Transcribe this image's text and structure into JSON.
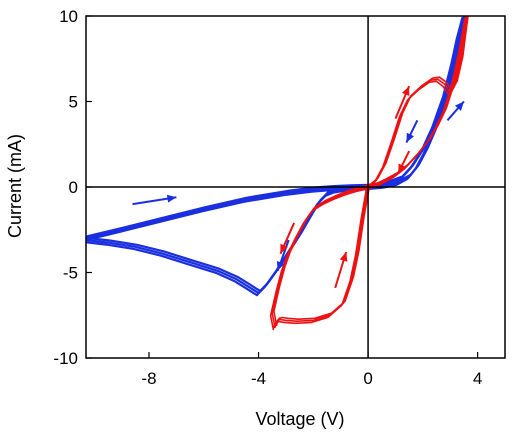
{
  "chart_data": {
    "type": "line",
    "xlabel": "Voltage (V)",
    "ylabel": "Current (mA)",
    "xlim": [
      -10.3,
      5
    ],
    "ylim": [
      -10,
      10
    ],
    "xticks": [
      -8,
      -4,
      0,
      4
    ],
    "yticks": [
      -10,
      -5,
      0,
      5,
      10
    ],
    "grid": false,
    "zero_lines": true,
    "colors": {
      "series_a": "#1a2fe0",
      "series_b": "#ee1111"
    },
    "series": [
      {
        "color": "#1a2fe0",
        "segments": [
          {
            "x": [
              -10.3,
              -9.5,
              -8.5,
              -7.5,
              -6.5,
              -5.5,
              -4.8,
              -4.4,
              -4.1,
              -4.0
            ],
            "y": [
              -3.1,
              -3.25,
              -3.5,
              -3.9,
              -4.4,
              -4.9,
              -5.4,
              -5.8,
              -6.1,
              -6.2
            ]
          },
          {
            "x": [
              -4.0,
              -3.7,
              -3.3,
              -2.9,
              -2.5,
              -2.1,
              -1.8,
              -1.5,
              -1.2,
              -0.8,
              -0.4,
              0
            ],
            "y": [
              -6.2,
              -5.7,
              -4.8,
              -3.8,
              -2.8,
              -1.7,
              -0.9,
              -0.4,
              -0.2,
              -0.1,
              -0.05,
              0
            ]
          },
          {
            "x": [
              -10.3,
              -9,
              -7.5,
              -6,
              -4.5,
              -3,
              -2,
              -1.3,
              -0.7,
              0
            ],
            "y": [
              -3.0,
              -2.5,
              -1.9,
              -1.3,
              -0.75,
              -0.35,
              -0.15,
              -0.07,
              -0.02,
              0
            ]
          },
          {
            "x": [
              0,
              0.6,
              1.2,
              1.6,
              2.0,
              2.4,
              2.8,
              3.1,
              3.3,
              3.5
            ],
            "y": [
              0,
              0.15,
              0.5,
              1.2,
              2.2,
              3.6,
              5.4,
              7.3,
              8.8,
              10.0
            ]
          },
          {
            "x": [
              3.5,
              3.3,
              3.0,
              2.7,
              2.4,
              2.1,
              1.8,
              1.5,
              1.1,
              0.6,
              0
            ],
            "y": [
              10.0,
              8.5,
              6.3,
              4.6,
              3.2,
              2.1,
              1.2,
              0.6,
              0.25,
              0.08,
              0
            ]
          }
        ],
        "arrows": [
          {
            "from": [
              -8.6,
              -1.0
            ],
            "to": [
              -7.0,
              -0.6
            ]
          },
          {
            "from": [
              2.9,
              3.9
            ],
            "to": [
              3.5,
              5.0
            ]
          },
          {
            "from": [
              -2.9,
              -3.1
            ],
            "to": [
              -3.3,
              -4.9
            ]
          },
          {
            "from": [
              1.8,
              3.9
            ],
            "to": [
              1.4,
              2.6
            ]
          }
        ]
      },
      {
        "color": "#ee1111",
        "segments": [
          {
            "x": [
              0,
              -0.2,
              -0.4,
              -0.6,
              -0.9,
              -1.4,
              -2.0,
              -2.6,
              -3.0,
              -3.2,
              -3.3,
              -3.35,
              -3.4
            ],
            "y": [
              0,
              -1.8,
              -3.9,
              -5.4,
              -6.8,
              -7.5,
              -7.8,
              -7.85,
              -7.8,
              -7.75,
              -7.8,
              -7.9,
              -8.2
            ]
          },
          {
            "x": [
              -3.4,
              -3.5,
              -3.3,
              -3.1,
              -2.9,
              -2.6,
              -2.3,
              -2.0,
              -1.6,
              -1.2,
              -0.8,
              -0.4,
              0
            ],
            "y": [
              -8.2,
              -7.4,
              -6.0,
              -4.8,
              -3.9,
              -2.9,
              -2.0,
              -1.3,
              -0.9,
              -0.6,
              -0.35,
              -0.15,
              0
            ]
          },
          {
            "x": [
              0,
              0.3,
              0.6,
              0.9,
              1.2,
              1.5,
              1.9,
              2.3,
              2.55
            ],
            "y": [
              0,
              0.4,
              1.3,
              2.7,
              4.2,
              5.2,
              5.8,
              6.25,
              6.3
            ]
          },
          {
            "x": [
              2.55,
              2.8,
              3.0,
              3.2,
              3.4,
              3.5,
              3.6
            ],
            "y": [
              6.3,
              6.0,
              5.5,
              6.1,
              7.5,
              8.8,
              10.0
            ]
          },
          {
            "x": [
              3.6,
              3.4,
              3.1,
              2.8,
              2.5,
              2.2,
              1.8,
              1.4,
              1.0,
              0.6,
              0.3,
              0
            ],
            "y": [
              10.0,
              8.2,
              6.0,
              4.5,
              3.5,
              2.7,
              1.9,
              1.2,
              0.7,
              0.35,
              0.12,
              0
            ]
          }
        ],
        "arrows": [
          {
            "from": [
              1.0,
              4.0
            ],
            "to": [
              1.5,
              5.9
            ]
          },
          {
            "from": [
              1.5,
              2.1
            ],
            "to": [
              1.1,
              0.8
            ]
          },
          {
            "from": [
              -2.7,
              -2.1
            ],
            "to": [
              -3.2,
              -3.9
            ]
          },
          {
            "from": [
              -1.2,
              -5.9
            ],
            "to": [
              -0.8,
              -3.8
            ]
          }
        ]
      }
    ]
  }
}
